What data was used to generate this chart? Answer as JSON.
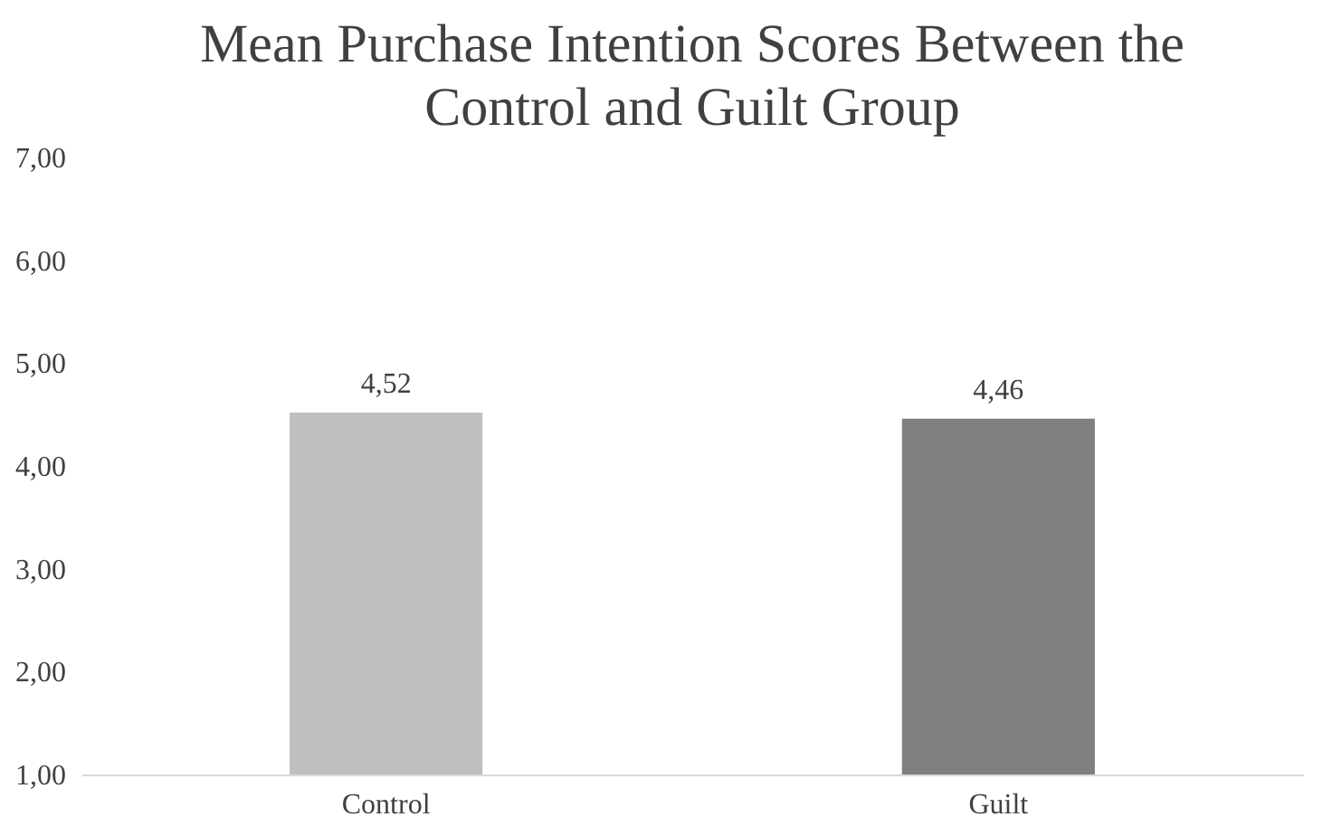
{
  "chart_data": {
    "type": "bar",
    "title": "Mean Purchase Intention Scores Between the Control and Guilt Group",
    "categories": [
      "Control",
      "Guilt"
    ],
    "values": [
      4.52,
      4.46
    ],
    "colors": [
      "#bfbfbf",
      "#7f7f7f"
    ],
    "value_labels": [
      "4,52",
      "4,46"
    ],
    "ylim": [
      1,
      7
    ],
    "yticks": [
      {
        "value": 1,
        "label": "1,00"
      },
      {
        "value": 2,
        "label": "2,00"
      },
      {
        "value": 3,
        "label": "3,00"
      },
      {
        "value": 4,
        "label": "4,00"
      },
      {
        "value": 5,
        "label": "5,00"
      },
      {
        "value": 6,
        "label": "6,00"
      },
      {
        "value": 7,
        "label": "7,00"
      }
    ],
    "grid": false
  }
}
